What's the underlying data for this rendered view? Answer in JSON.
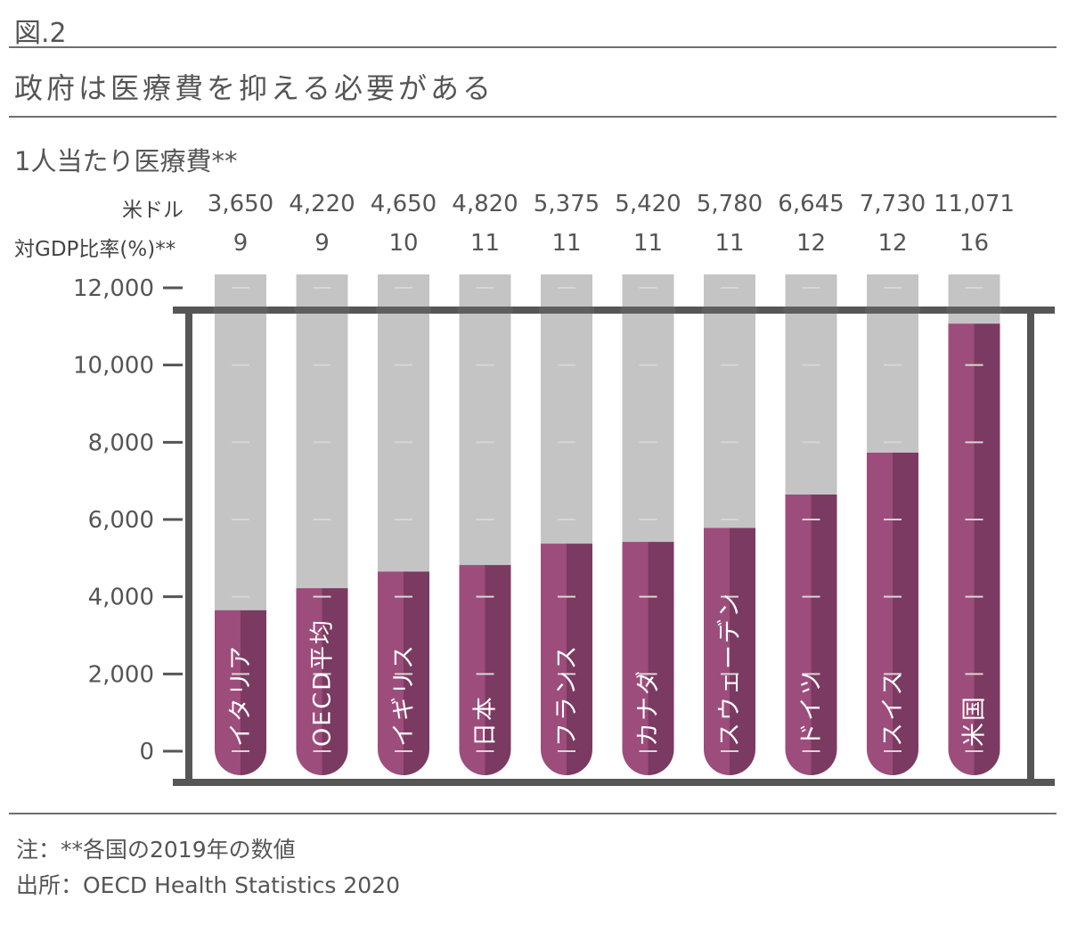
{
  "figure_label": "図.2",
  "headline": "政府は医療費を抑える必要がある",
  "subtitle": "1人当たり医療費**",
  "row_labels": {
    "usd": "米ドル",
    "gdp_ratio": "対GDP比率(%)**"
  },
  "footnotes": {
    "note": "注：**各国の2019年の数値",
    "source": "出所：OECD Health Statistics 2020"
  },
  "colors": {
    "bar_light": "#9c4d7c",
    "bar_dark": "#7b3a61",
    "tube": "#c4c4c4",
    "frame": "#565656",
    "tick": "#d6d6d6"
  },
  "chart_data": {
    "type": "bar",
    "categories": [
      "イタリア",
      "OECD平均",
      "イギリス",
      "日本",
      "フランス",
      "カナダ",
      "スウェーデン",
      "ドイツ",
      "スイス",
      "米国"
    ],
    "usd_labels": [
      "3,650",
      "4,220",
      "4,650",
      "4,820",
      "5,375",
      "5,420",
      "5,780",
      "6,645",
      "7,730",
      "11,071"
    ],
    "gdp_ratio_labels": [
      "9",
      "9",
      "10",
      "11",
      "11",
      "11",
      "11",
      "12",
      "12",
      "16"
    ],
    "values": [
      3650,
      4220,
      4650,
      4820,
      5375,
      5420,
      5780,
      6645,
      7730,
      11071
    ],
    "yticks": [
      "0",
      "2,000",
      "4,000",
      "6,000",
      "8,000",
      "10,000",
      "12,000"
    ],
    "ylim": [
      0,
      12000
    ]
  }
}
